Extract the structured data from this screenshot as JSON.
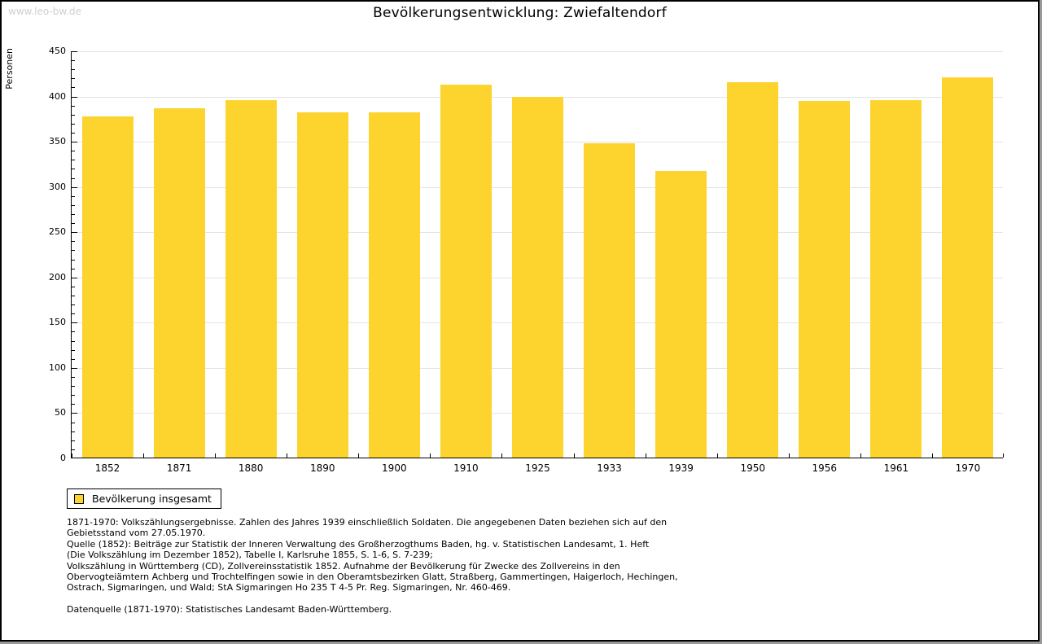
{
  "page": {
    "watermark": "www.leo-bw.de"
  },
  "colors": {
    "bar": "#fdd32e",
    "grid": "#e3e3e3",
    "axis": "#000000",
    "watermark": "#cfcfcf",
    "text": "#000000"
  },
  "chart_data": {
    "type": "bar",
    "title": "Bevölkerungsentwicklung: Zwiefaltendorf",
    "ylabel": "Personen",
    "xlabel": "",
    "categories": [
      "1852",
      "1871",
      "1880",
      "1890",
      "1900",
      "1910",
      "1925",
      "1933",
      "1939",
      "1950",
      "1956",
      "1961",
      "1970"
    ],
    "values": [
      377,
      386,
      395,
      382,
      382,
      412,
      399,
      347,
      317,
      415,
      394,
      395,
      420
    ],
    "series": [
      {
        "name": "Bevölkerung insgesamt",
        "color": "#fdd32e"
      }
    ],
    "ylim": [
      0,
      450
    ],
    "y_major_step": 50,
    "y_minor_step": 10,
    "y_ticks": [
      0,
      50,
      100,
      150,
      200,
      250,
      300,
      350,
      400,
      450
    ],
    "grid": true,
    "legend_position": "bottom-left"
  },
  "legend": {
    "label": "Bevölkerung insgesamt"
  },
  "footnotes": {
    "lines": [
      "1871-1970: Volkszählungsergebnisse. Zahlen des Jahres 1939 einschließlich Soldaten. Die angegebenen Daten beziehen sich auf den",
      "Gebietsstand vom 27.05.1970.",
      "Quelle (1852): Beiträge zur Statistik der Inneren Verwaltung des Großherzogthums Baden, hg. v. Statistischen Landesamt, 1. Heft",
      "(Die Volkszählung im Dezember 1852), Tabelle I, Karlsruhe 1855, S. 1-6, S. 7-239;",
      "Volkszählung in Württemberg (CD), Zollvereinsstatistik 1852. Aufnahme der Bevölkerung für Zwecke des Zollvereins in den",
      "Obervogteiämtern Achberg und Trochtelfingen sowie in den Oberamtsbezirken Glatt, Straßberg, Gammertingen, Haigerloch, Hechingen,",
      "Ostrach, Sigmaringen, und Wald; StA Sigmaringen Ho 235 T 4-5 Pr. Reg. Sigmaringen, Nr. 460-469."
    ],
    "datasource": "Datenquelle (1871-1970): Statistisches Landesamt Baden-Württemberg."
  }
}
